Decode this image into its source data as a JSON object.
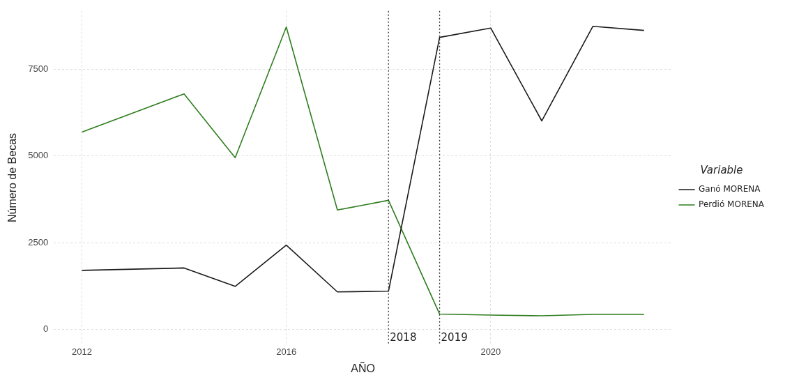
{
  "chart_data": {
    "type": "line",
    "xlabel": "AÑO",
    "ylabel": "Número de Becas",
    "legend_title": "Variable",
    "x": [
      2012,
      2014,
      2015,
      2016,
      2017,
      2018,
      2019,
      2020,
      2021,
      2022,
      2023
    ],
    "series": [
      {
        "name": "Ganó MORENA",
        "color": "#1a1a1a",
        "values": [
          1700,
          1770,
          1240,
          2430,
          1080,
          1100,
          8420,
          8690,
          6010,
          8740,
          8620
        ]
      },
      {
        "name": "Perdió MORENA",
        "color": "#2e7d1e",
        "values": [
          5690,
          6790,
          4950,
          8720,
          3440,
          3720,
          440,
          410,
          390,
          430,
          430
        ]
      }
    ],
    "xlim": [
      2011.45,
      2023.55
    ],
    "xticks": [
      2012,
      2016,
      2020
    ],
    "ylim": [
      -437,
      9180
    ],
    "yticks": [
      0,
      2500,
      5000,
      7500
    ],
    "ref_lines": [
      {
        "axis": "x",
        "value": 2018,
        "label": "2018",
        "line_style": "dotted",
        "color": "#333333"
      },
      {
        "axis": "x",
        "value": 2019,
        "label": "2019",
        "line_style": "dotted",
        "color": "#333333"
      }
    ],
    "grid": true,
    "legend": "right",
    "marker": "none",
    "line_style": "solid"
  }
}
